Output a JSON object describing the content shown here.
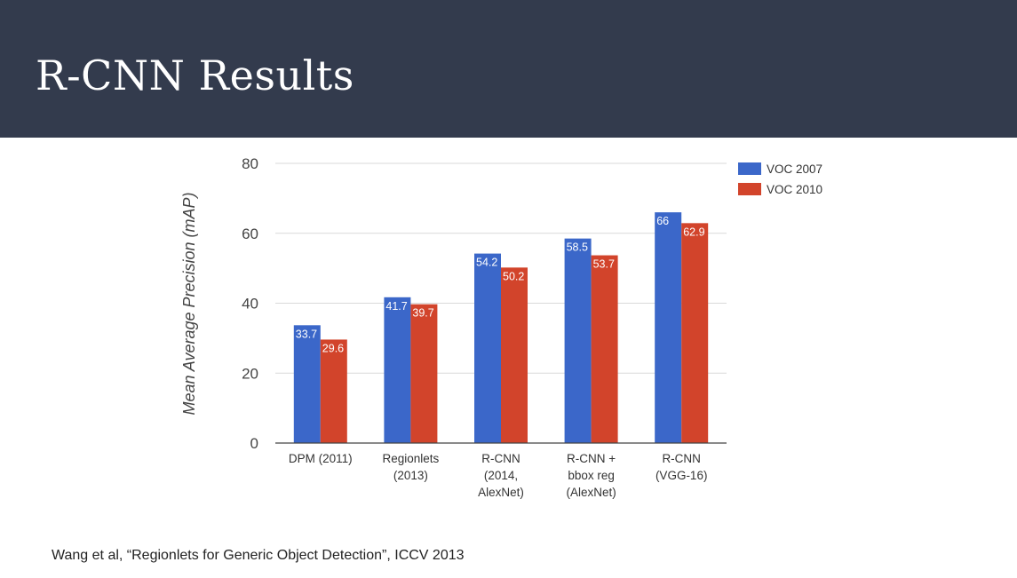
{
  "slide": {
    "title": "R-CNN Results",
    "footnote": "Wang et al, “Regionlets for Generic Object Detection”, ICCV 2013"
  },
  "colors": {
    "header_bg": "#333b4d",
    "series_1": "#3b67c9",
    "series_2": "#d2442b",
    "grid": "#d9d9d9",
    "axis": "#444444"
  },
  "chart_data": {
    "type": "bar",
    "title": "",
    "xlabel": "",
    "ylabel": "Mean Average Precision (mAP)",
    "ylim": [
      0,
      80
    ],
    "yticks": [
      0,
      20,
      40,
      60,
      80
    ],
    "grid": true,
    "legend_position": "top-right",
    "categories": [
      [
        "DPM (2011)"
      ],
      [
        "Regionlets",
        "(2013)"
      ],
      [
        "R-CNN",
        "(2014,",
        "AlexNet)"
      ],
      [
        "R-CNN +",
        "bbox reg",
        "(AlexNet)"
      ],
      [
        "R-CNN",
        "(VGG-16)"
      ]
    ],
    "series": [
      {
        "name": "VOC 2007",
        "values": [
          33.7,
          41.7,
          54.2,
          58.5,
          66
        ],
        "labels": [
          "33.7",
          "41.7",
          "54.2",
          "58.5",
          "66"
        ]
      },
      {
        "name": "VOC 2010",
        "values": [
          29.6,
          39.7,
          50.2,
          53.7,
          62.9
        ],
        "labels": [
          "29.6",
          "39.7",
          "50.2",
          "53.7",
          "62.9"
        ]
      }
    ]
  }
}
